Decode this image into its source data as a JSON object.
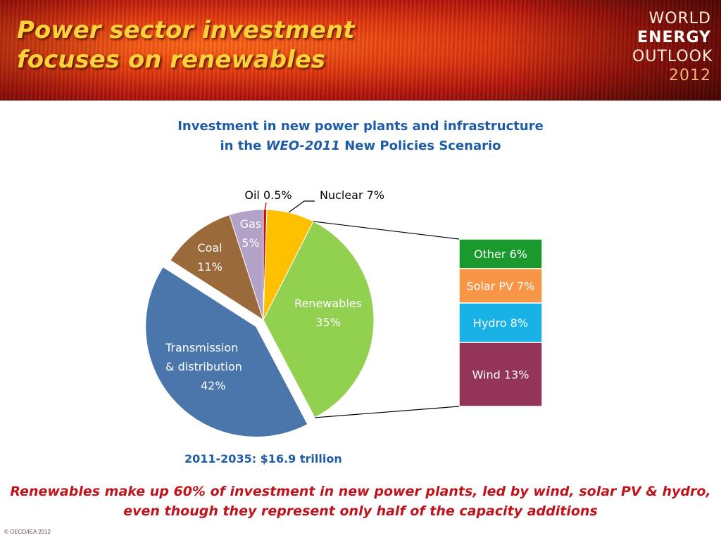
{
  "slide": {
    "title_line1": "Power sector investment",
    "title_line2": "focuses on renewables",
    "logo": {
      "line1": "WORLD",
      "line2": "ENERGY",
      "line3": "OUTLOOK",
      "line4": "2012"
    },
    "chart_title_line1": "Investment in new power plants and infrastructure",
    "chart_title_line2_pre": "in the ",
    "chart_title_line2_italic": "WEO-2011",
    "chart_title_line2_post": " New Policies Scenario",
    "total": "2011-2035: $16.9 trillion",
    "conclusion_line1": "Renewables make up 60% of investment in new power plants, led by wind, solar PV & hydro,",
    "conclusion_line2": "even though they represent only half of the capacity additions",
    "copyright": "© OECD/IEA 2012"
  },
  "chart_data": [
    {
      "type": "pie",
      "unit": "%",
      "slices": [
        {
          "name": "Oil",
          "value": 0.5,
          "label": [
            "Oil 0.5%"
          ],
          "color": "#c0141c",
          "label_color": "#000000"
        },
        {
          "name": "Nuclear",
          "value": 7,
          "label": [
            "Nuclear 7%"
          ],
          "color": "#ffc000",
          "label_color": "#000000"
        },
        {
          "name": "Renewables",
          "value": 35,
          "label": [
            "Renewables",
            "35%"
          ],
          "color": "#92d050",
          "label_color": "#ffffff"
        },
        {
          "name": "Transmission & distribution",
          "value": 42,
          "label": [
            "Transmission",
            "& distribution",
            "42%"
          ],
          "color": "#4a76ac",
          "label_color": "#ffffff"
        },
        {
          "name": "Coal",
          "value": 11,
          "label": [
            "Coal",
            "11%"
          ],
          "color": "#9b6a3a",
          "label_color": "#ffffff"
        },
        {
          "name": "Gas",
          "value": 5,
          "label": [
            "Gas",
            "5%"
          ],
          "color": "#b3a2c7",
          "label_color": "#ffffff"
        }
      ]
    },
    {
      "type": "bar",
      "stacked": true,
      "unit": "%",
      "note": "breakdown of Renewables slice",
      "segments": [
        {
          "name": "Other",
          "value": 6,
          "label": "Other 6%",
          "color": "#1a9a2c"
        },
        {
          "name": "Solar PV",
          "value": 7,
          "label": "Solar PV 7%",
          "color": "#f79646"
        },
        {
          "name": "Hydro",
          "value": 8,
          "label": "Hydro 8%",
          "color": "#18b2e6"
        },
        {
          "name": "Wind",
          "value": 13,
          "label": "Wind 13%",
          "color": "#943459"
        }
      ]
    }
  ]
}
